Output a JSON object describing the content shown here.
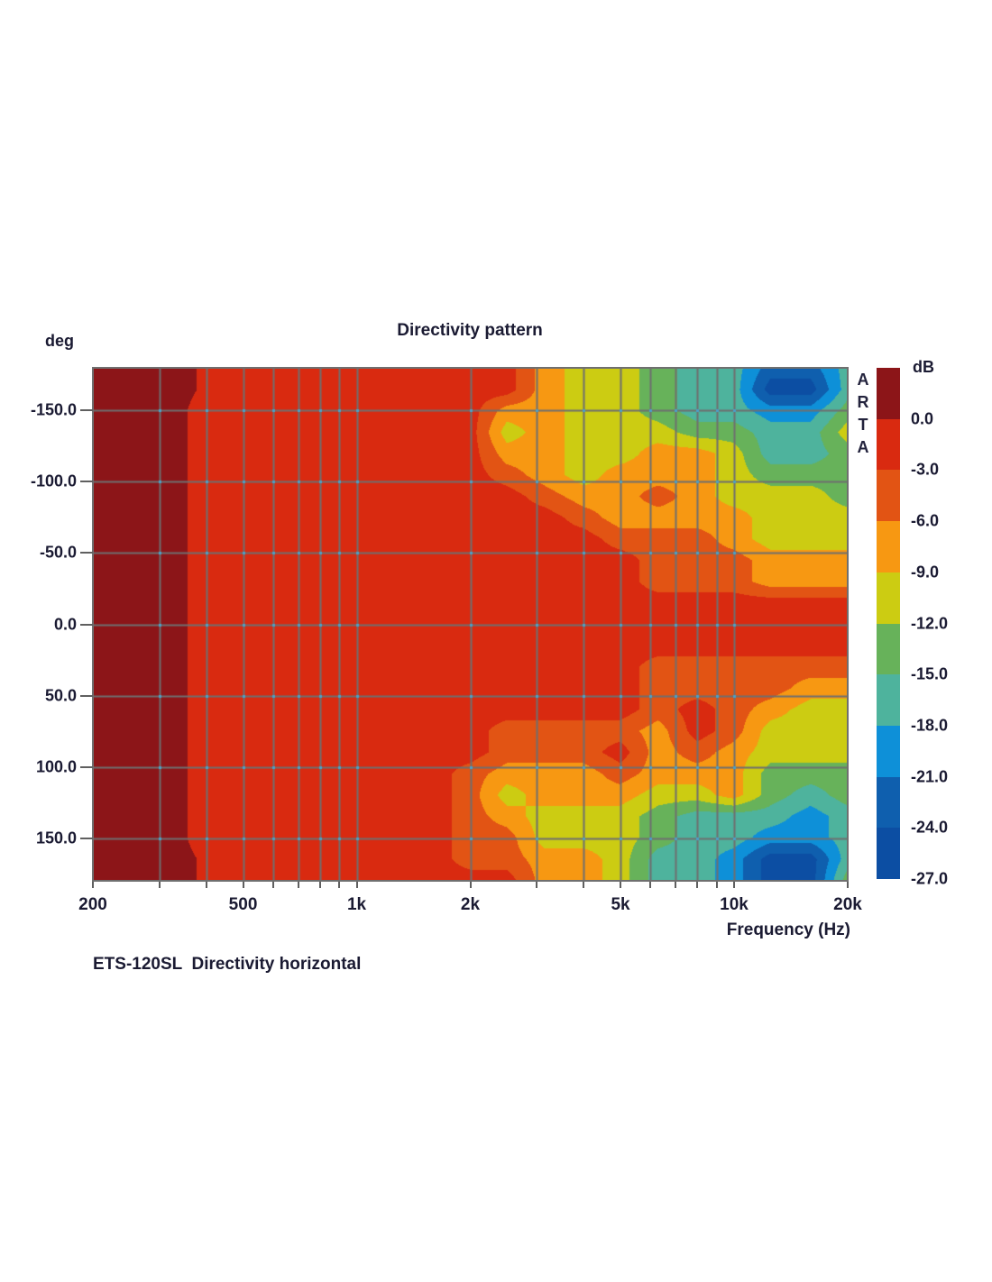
{
  "title": "Directivity pattern",
  "caption": "ETS-120SL  Directivity horizontal",
  "watermark_letters": [
    "A",
    "R",
    "T",
    "A"
  ],
  "colorbar": {
    "unit_label": "dB",
    "boundary_labels": [
      "0.0",
      "-3.0",
      "-6.0",
      "-9.0",
      "-12.0",
      "-15.0",
      "-18.0",
      "-21.0",
      "-24.0",
      "-27.0"
    ]
  },
  "x_axis": {
    "title": "Frequency (Hz)",
    "scale": "log",
    "range_hz": [
      200,
      20000
    ],
    "labeled_ticks": [
      {
        "freq": 200,
        "label": "200"
      },
      {
        "freq": 500,
        "label": "500"
      },
      {
        "freq": 1000,
        "label": "1k"
      },
      {
        "freq": 2000,
        "label": "2k"
      },
      {
        "freq": 5000,
        "label": "5k"
      },
      {
        "freq": 10000,
        "label": "10k"
      },
      {
        "freq": 20000,
        "label": "20k"
      }
    ],
    "gridline_freqs": [
      300,
      400,
      500,
      600,
      700,
      800,
      900,
      1000,
      2000,
      3000,
      4000,
      5000,
      6000,
      7000,
      8000,
      9000,
      10000
    ],
    "minor_tick_freqs": [
      200,
      300,
      400,
      500,
      600,
      700,
      800,
      900,
      1000,
      2000,
      3000,
      4000,
      5000,
      6000,
      7000,
      8000,
      9000,
      10000,
      20000
    ]
  },
  "y_axis": {
    "unit_label": "deg",
    "range_deg": [
      -180,
      180
    ],
    "tick_values": [
      -150,
      -100,
      -50,
      0,
      50,
      100,
      150
    ],
    "tick_labels": [
      "-150.0",
      "-100.0",
      "-50.0",
      "0.0",
      "50.0",
      "100.0",
      "150.0"
    ]
  },
  "chart_data": {
    "type": "heatmap",
    "title": "Directivity pattern",
    "xlabel": "Frequency (Hz)",
    "ylabel": "deg",
    "zlabel": "dB",
    "x_scale": "log",
    "grid": true,
    "legend_position": "right-colorbar",
    "band_step_db": 3,
    "band_boundaries_db": [
      0,
      -3,
      -6,
      -9,
      -12,
      -15,
      -18,
      -21,
      -24,
      -27
    ],
    "palette_top_to_bottom": [
      "#8c1518",
      "#d92a10",
      "#e25414",
      "#f79812",
      "#cccc12",
      "#67b25a",
      "#4eb39d",
      "#0e90d8",
      "#0f5fae",
      "#0c4ea3"
    ],
    "gridline_color": "#6f6f6f",
    "grid_dot_color": "#4aa0c8",
    "frequencies_hz": [
      200,
      250,
      315,
      400,
      500,
      630,
      800,
      1000,
      1250,
      1600,
      2000,
      2500,
      3150,
      4000,
      5000,
      6300,
      8000,
      10000,
      12500,
      16000,
      20000
    ],
    "angles_deg": [
      -180,
      -165,
      -150,
      -135,
      -120,
      -105,
      -90,
      -75,
      -60,
      -45,
      -30,
      -15,
      0,
      15,
      30,
      45,
      60,
      75,
      90,
      105,
      120,
      135,
      150,
      165,
      180
    ],
    "values_db": [
      [
        1.5,
        1.5,
        1.5,
        -0.5,
        -1.5,
        -1.5,
        -1.5,
        -1.5,
        -1.5,
        -1.5,
        -1.5,
        -1.5,
        -7.5,
        -10.5,
        -10.5,
        -13.5,
        -16.5,
        -16.5,
        -22.5,
        -22.5,
        -16.5
      ],
      [
        1.5,
        1.5,
        1.5,
        -0.5,
        -1.5,
        -1.5,
        -1.5,
        -1.5,
        -1.5,
        -1.5,
        -1.5,
        -1.5,
        -7.5,
        -10.5,
        -10.5,
        -13.5,
        -16.5,
        -16.5,
        -25.5,
        -25.5,
        -16.5
      ],
      [
        1.5,
        1.5,
        1.5,
        -1.5,
        -1.5,
        -1.5,
        -1.5,
        -1.5,
        -1.5,
        -1.5,
        -1.5,
        -7.5,
        -7.5,
        -10.5,
        -10.5,
        -13.5,
        -16.5,
        -16.5,
        -19.5,
        -19.5,
        -13.5
      ],
      [
        1.5,
        1.5,
        1.5,
        -1.5,
        -1.5,
        -1.5,
        -1.5,
        -1.5,
        -1.5,
        -1.5,
        -1.5,
        -10.5,
        -7.5,
        -10.5,
        -10.5,
        -10.5,
        -13.5,
        -13.5,
        -16.5,
        -16.5,
        -10.5
      ],
      [
        1.5,
        1.5,
        1.5,
        -1.5,
        -1.5,
        -1.5,
        -1.5,
        -1.5,
        -1.5,
        -1.5,
        -1.5,
        -7.5,
        -7.5,
        -10.5,
        -10.5,
        -7.5,
        -7.5,
        -10.5,
        -16.5,
        -16.5,
        -13.5
      ],
      [
        1.5,
        1.5,
        1.5,
        -1.5,
        -1.5,
        -1.5,
        -1.5,
        -1.5,
        -1.5,
        -1.5,
        -1.5,
        -4.5,
        -7.5,
        -10.5,
        -7.5,
        -7.5,
        -7.5,
        -10.5,
        -13.5,
        -13.5,
        -13.5
      ],
      [
        1.5,
        1.5,
        1.5,
        -1.5,
        -1.5,
        -1.5,
        -1.5,
        -1.5,
        -1.5,
        -1.5,
        -1.5,
        -1.5,
        -4.5,
        -7.5,
        -7.5,
        -4.5,
        -7.5,
        -10.5,
        -10.5,
        -10.5,
        -13.5
      ],
      [
        1.5,
        1.5,
        1.5,
        -1.5,
        -1.5,
        -1.5,
        -1.5,
        -1.5,
        -1.5,
        -1.5,
        -1.5,
        -1.5,
        -1.5,
        -4.5,
        -7.5,
        -7.5,
        -7.5,
        -7.5,
        -10.5,
        -10.5,
        -10.5
      ],
      [
        1.5,
        1.5,
        1.5,
        -1.5,
        -1.5,
        -1.5,
        -1.5,
        -1.5,
        -1.5,
        -1.5,
        -1.5,
        -1.5,
        -1.5,
        -1.5,
        -4.5,
        -4.5,
        -4.5,
        -7.5,
        -10.5,
        -10.5,
        -10.5
      ],
      [
        1.5,
        1.5,
        1.5,
        -1.5,
        -1.5,
        -1.5,
        -1.5,
        -1.5,
        -1.5,
        -1.5,
        -1.5,
        -1.5,
        -1.5,
        -1.5,
        -1.5,
        -4.5,
        -4.5,
        -4.5,
        -7.5,
        -7.5,
        -7.5
      ],
      [
        1.5,
        1.5,
        1.5,
        -1.5,
        -1.5,
        -1.5,
        -1.5,
        -1.5,
        -1.5,
        -1.5,
        -1.5,
        -1.5,
        -1.5,
        -1.5,
        -1.5,
        -4.5,
        -4.5,
        -4.5,
        -7.5,
        -7.5,
        -7.5
      ],
      [
        1.5,
        1.5,
        1.5,
        -1.5,
        -1.5,
        -1.5,
        -1.5,
        -1.5,
        -1.5,
        -1.5,
        -1.5,
        -1.5,
        -1.5,
        -1.5,
        -1.5,
        -1.5,
        -1.5,
        -1.5,
        -1.5,
        -1.5,
        -1.5
      ],
      [
        1.5,
        1.5,
        1.5,
        -1.5,
        -1.5,
        -1.5,
        -1.5,
        -1.5,
        -1.5,
        -1.5,
        -1.5,
        -1.5,
        -1.5,
        -1.5,
        -1.5,
        -1.5,
        -1.5,
        -1.5,
        -1.5,
        -1.5,
        -1.5
      ],
      [
        1.5,
        1.5,
        1.5,
        -1.5,
        -1.5,
        -1.5,
        -1.5,
        -1.5,
        -1.5,
        -1.5,
        -1.5,
        -1.5,
        -1.5,
        -1.5,
        -1.5,
        -1.5,
        -1.5,
        -1.5,
        -1.5,
        -1.5,
        -1.5
      ],
      [
        1.5,
        1.5,
        1.5,
        -1.5,
        -1.5,
        -1.5,
        -1.5,
        -1.5,
        -1.5,
        -1.5,
        -1.5,
        -1.5,
        -1.5,
        -1.5,
        -1.5,
        -4.5,
        -4.5,
        -4.5,
        -4.5,
        -4.5,
        -4.5
      ],
      [
        1.5,
        1.5,
        1.5,
        -1.5,
        -1.5,
        -1.5,
        -1.5,
        -1.5,
        -1.5,
        -1.5,
        -1.5,
        -1.5,
        -1.5,
        -1.5,
        -1.5,
        -4.5,
        -4.5,
        -4.5,
        -4.5,
        -7.5,
        -7.5
      ],
      [
        1.5,
        1.5,
        1.5,
        -1.5,
        -1.5,
        -1.5,
        -1.5,
        -1.5,
        -1.5,
        -1.5,
        -1.5,
        -1.5,
        -1.5,
        -1.5,
        -1.5,
        -4.5,
        -1.5,
        -4.5,
        -7.5,
        -10.5,
        -10.5
      ],
      [
        1.5,
        1.5,
        1.5,
        -1.5,
        -1.5,
        -1.5,
        -1.5,
        -1.5,
        -1.5,
        -1.5,
        -1.5,
        -4.5,
        -4.5,
        -4.5,
        -4.5,
        -7.5,
        -1.5,
        -4.5,
        -10.5,
        -10.5,
        -10.5
      ],
      [
        1.5,
        1.5,
        1.5,
        -1.5,
        -1.5,
        -1.5,
        -1.5,
        -1.5,
        -1.5,
        -1.5,
        -1.5,
        -4.5,
        -4.5,
        -4.5,
        -1.5,
        -7.5,
        -4.5,
        -7.5,
        -10.5,
        -10.5,
        -10.5
      ],
      [
        1.5,
        1.5,
        1.5,
        -1.5,
        -1.5,
        -1.5,
        -1.5,
        -1.5,
        -1.5,
        -1.5,
        -4.5,
        -7.5,
        -7.5,
        -7.5,
        -4.5,
        -7.5,
        -7.5,
        -7.5,
        -13.5,
        -13.5,
        -13.5
      ],
      [
        1.5,
        1.5,
        1.5,
        -1.5,
        -1.5,
        -1.5,
        -1.5,
        -1.5,
        -1.5,
        -1.5,
        -4.5,
        -10.5,
        -7.5,
        -7.5,
        -7.5,
        -10.5,
        -10.5,
        -7.5,
        -13.5,
        -16.5,
        -13.5
      ],
      [
        1.5,
        1.5,
        1.5,
        -1.5,
        -1.5,
        -1.5,
        -1.5,
        -1.5,
        -1.5,
        -1.5,
        -4.5,
        -7.5,
        -10.5,
        -10.5,
        -10.5,
        -13.5,
        -16.5,
        -16.5,
        -16.5,
        -19.5,
        -16.5
      ],
      [
        1.5,
        1.5,
        1.5,
        -1.5,
        -1.5,
        -1.5,
        -1.5,
        -1.5,
        -1.5,
        -1.5,
        -4.5,
        -4.5,
        -10.5,
        -10.5,
        -10.5,
        -13.5,
        -16.5,
        -16.5,
        -19.5,
        -19.5,
        -16.5
      ],
      [
        1.5,
        1.5,
        1.5,
        -0.5,
        -1.5,
        -1.5,
        -1.5,
        -1.5,
        -1.5,
        -1.5,
        -4.5,
        -4.5,
        -7.5,
        -7.5,
        -10.5,
        -16.5,
        -16.5,
        -19.5,
        -25.5,
        -25.5,
        -16.5
      ],
      [
        1.5,
        1.5,
        1.5,
        -0.5,
        -1.5,
        -1.5,
        -1.5,
        -1.5,
        -1.5,
        -1.5,
        -1.5,
        -1.5,
        -7.5,
        -7.5,
        -10.5,
        -16.5,
        -16.5,
        -19.5,
        -25.5,
        -25.5,
        -13.5
      ]
    ]
  }
}
